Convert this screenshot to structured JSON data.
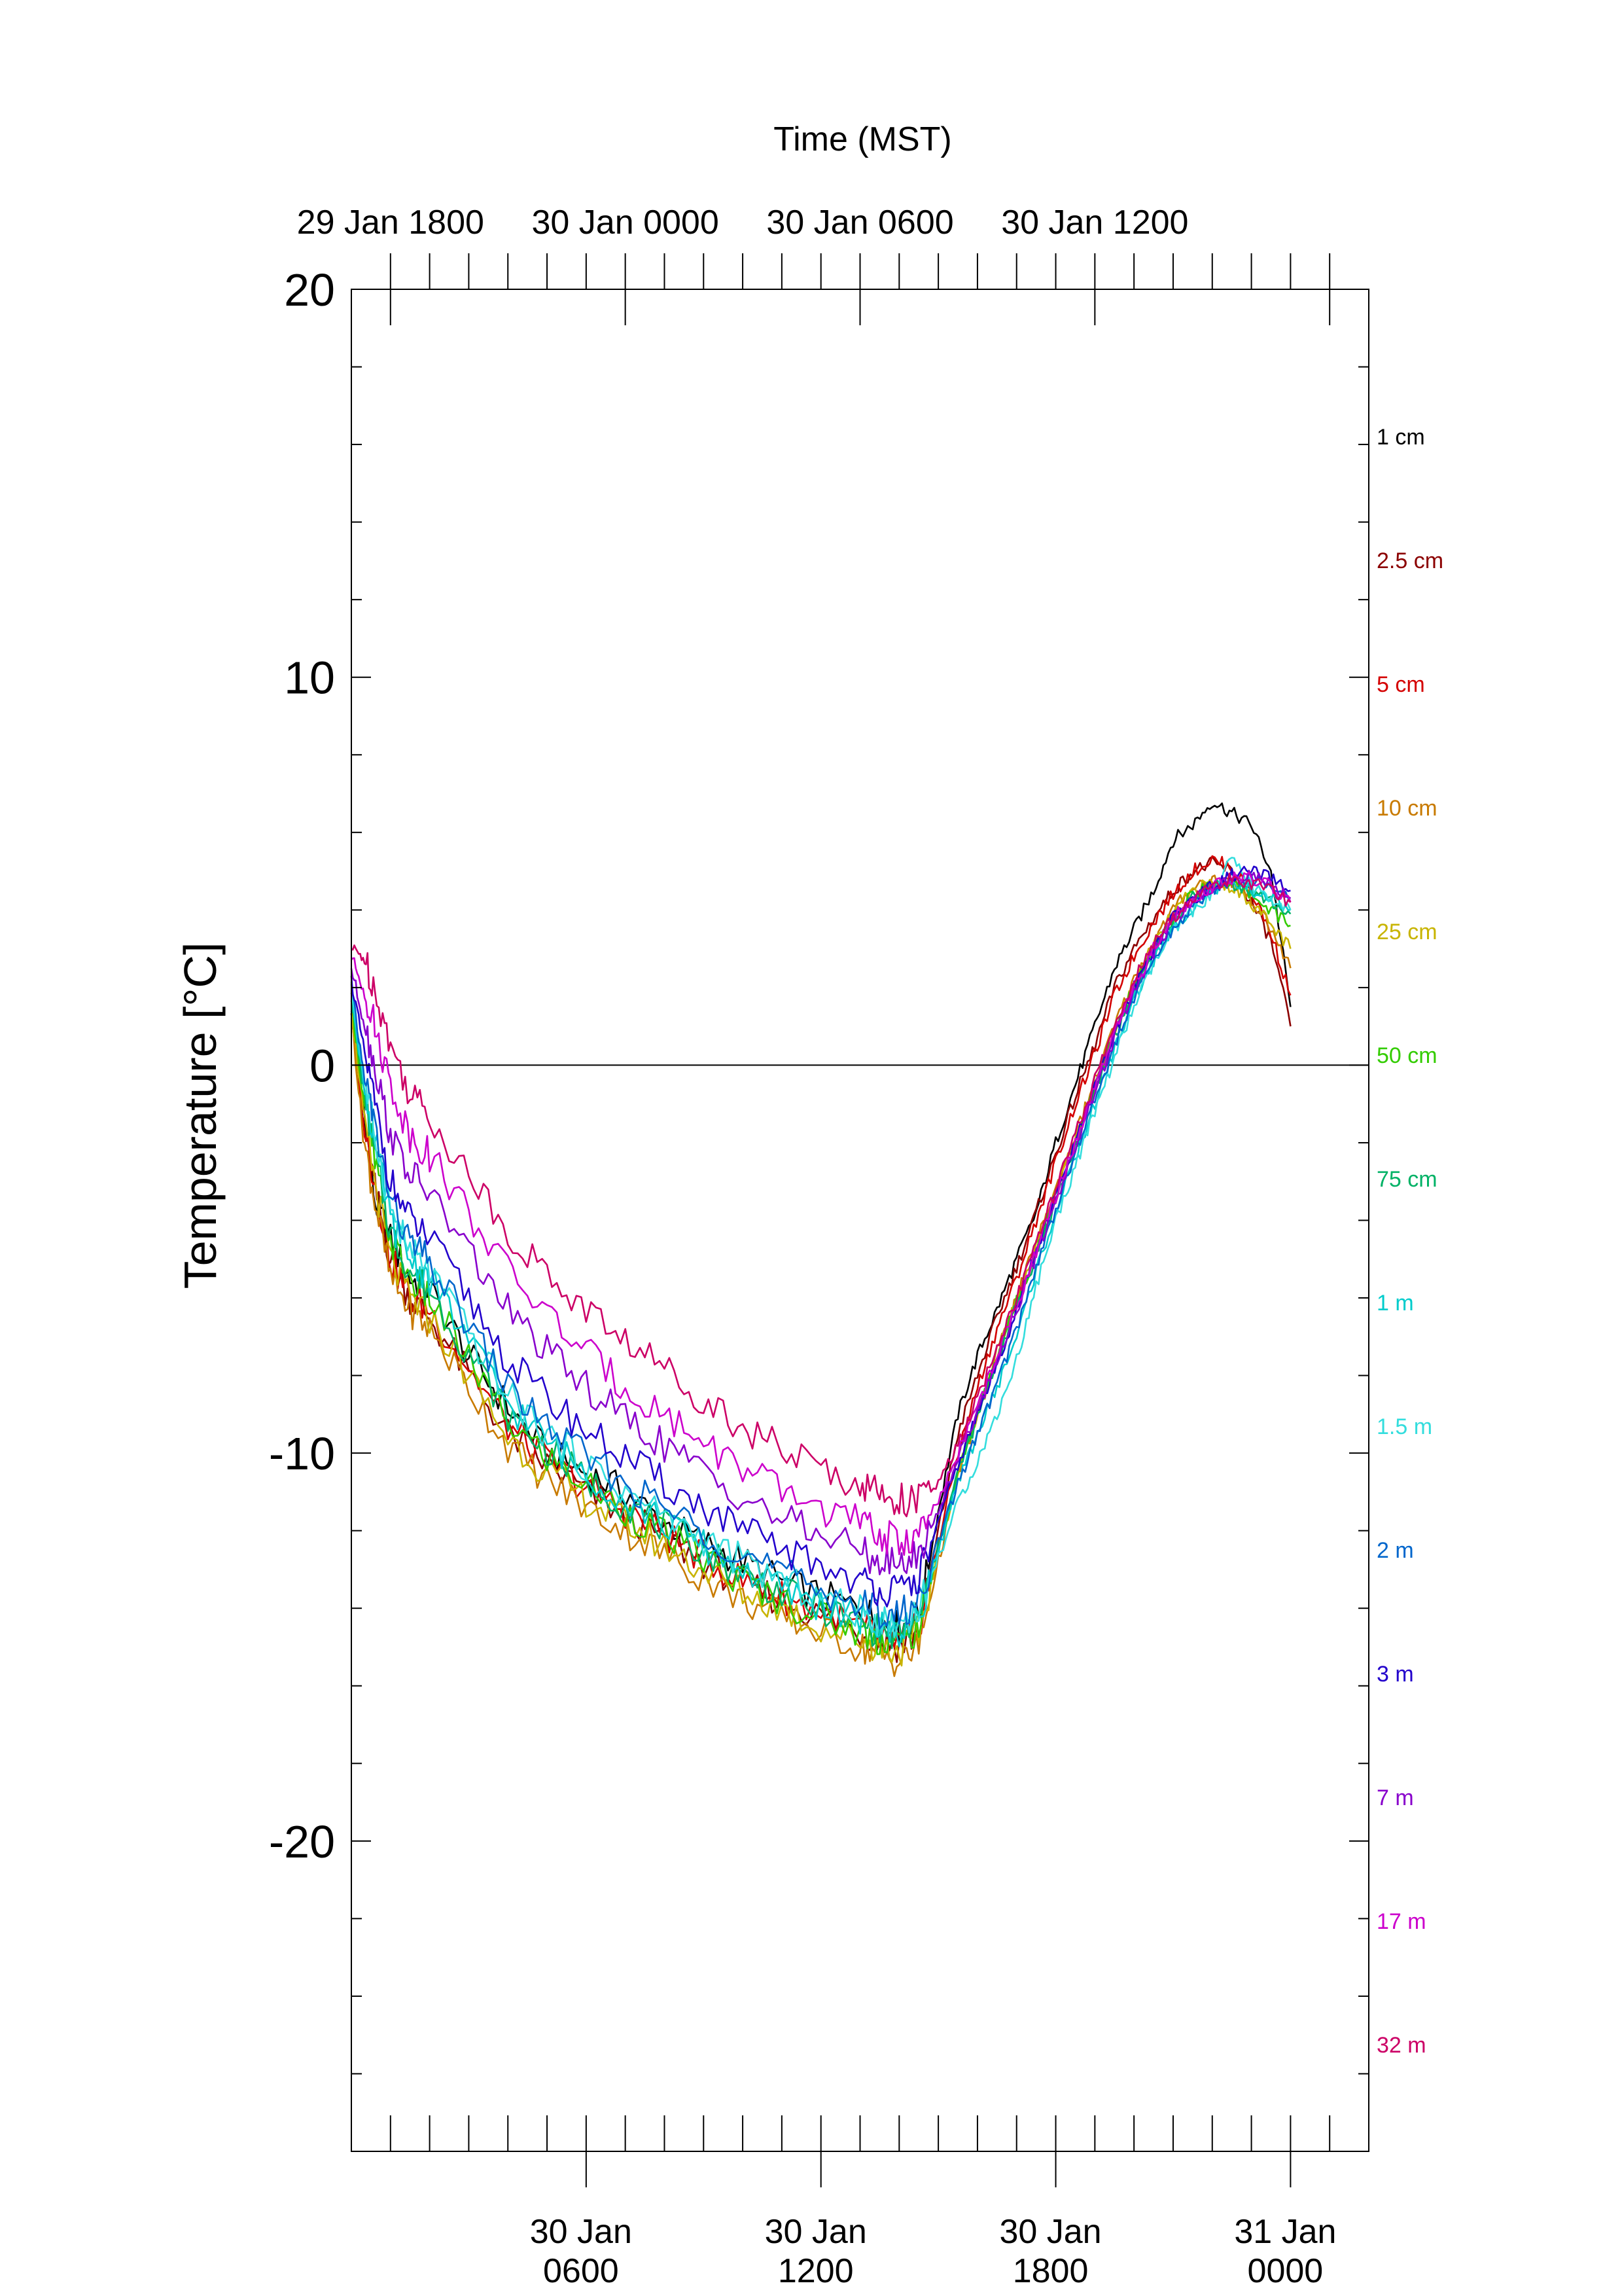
{
  "chart_data": {
    "type": "line",
    "top_axis_title": "Time (MST)",
    "ylabel": "Temperature [°C]",
    "ylim": [
      -28,
      20
    ],
    "xlim": [
      0,
      26
    ],
    "top_x_ticks": [
      {
        "x": 1,
        "label": "29 Jan 1800"
      },
      {
        "x": 7,
        "label": "30 Jan 0000"
      },
      {
        "x": 13,
        "label": "30 Jan 0600"
      },
      {
        "x": 19,
        "label": "30 Jan 1200"
      }
    ],
    "bottom_x_ticks": [
      {
        "x": 6,
        "line1": "30 Jan",
        "line2": "0600"
      },
      {
        "x": 12,
        "line1": "30 Jan",
        "line2": "1200"
      },
      {
        "x": 18,
        "line1": "30 Jan",
        "line2": "1800"
      },
      {
        "x": 24,
        "line1": "31 Jan",
        "line2": "0000"
      }
    ],
    "y_ticks": [
      {
        "y": 20,
        "label": "20"
      },
      {
        "y": 10,
        "label": "10"
      },
      {
        "y": 0,
        "label": "0"
      },
      {
        "y": -10,
        "label": "-10"
      },
      {
        "y": -20,
        "label": "-20"
      }
    ],
    "reference_line_y": 0,
    "x_units": "hours from 29 Jan 1700 MST",
    "series": [
      {
        "name": "1 cm",
        "color": "#000000",
        "x": [
          0,
          0.3,
          0.6,
          1,
          1.5,
          2,
          3,
          4,
          5,
          6,
          7,
          8,
          9,
          10,
          11,
          12,
          13,
          13.5,
          14,
          14.5,
          15,
          15.5,
          16,
          16.5,
          17,
          17.5,
          18,
          18.5,
          19,
          19.5,
          20,
          20.5,
          21,
          21.5,
          22,
          22.5,
          23,
          23.5,
          24
        ],
        "y": [
          1.5,
          -1,
          -3.5,
          -4.5,
          -5.5,
          -5.8,
          -7.5,
          -8.8,
          -10,
          -10.5,
          -11,
          -11.8,
          -12.3,
          -12.8,
          -13.3,
          -13.7,
          -14,
          -14.3,
          -14.5,
          -14.2,
          -11.5,
          -9,
          -7.5,
          -6.3,
          -5,
          -3.8,
          -2,
          -0.5,
          1,
          2.5,
          3.5,
          4.5,
          5.8,
          6.2,
          6.8,
          6.5,
          6.2,
          5,
          1.5
        ]
      },
      {
        "name": "2.5 cm",
        "color": "#8b0000",
        "x": [
          0,
          0.3,
          0.6,
          1,
          1.5,
          2,
          3,
          4,
          5,
          6,
          7,
          8,
          9,
          10,
          11,
          12,
          13,
          13.5,
          14,
          14.5,
          15,
          15.5,
          16,
          16.5,
          17,
          17.5,
          18,
          18.5,
          19,
          19.5,
          20,
          20.5,
          21,
          21.5,
          22,
          22.5,
          23,
          23.5,
          24
        ],
        "y": [
          1.5,
          -1.5,
          -3.2,
          -5,
          -6,
          -6.5,
          -8,
          -9.5,
          -10.3,
          -11,
          -11.6,
          -12.2,
          -12.8,
          -13.4,
          -13.8,
          -14.2,
          -14.6,
          -14.8,
          -15,
          -14.6,
          -12,
          -9.5,
          -8,
          -6.5,
          -5.2,
          -3.8,
          -2.3,
          -0.8,
          0.5,
          2,
          3,
          3.8,
          4.5,
          5,
          5.2,
          5,
          4.2,
          3.2,
          1
        ]
      },
      {
        "name": "5 cm",
        "color": "#d40000",
        "x": [
          0,
          0.3,
          0.6,
          1,
          1.5,
          2,
          3,
          4,
          5,
          6,
          7,
          8,
          9,
          10,
          11,
          12,
          13,
          13.5,
          14,
          14.5,
          15,
          15.5,
          16,
          16.5,
          17,
          17.5,
          18,
          18.5,
          19,
          19.5,
          20,
          20.5,
          21,
          21.5,
          22,
          22.5,
          23,
          23.5,
          24
        ],
        "y": [
          1.4,
          -1.5,
          -3,
          -5,
          -6,
          -6.3,
          -7.8,
          -9.3,
          -10.2,
          -10.9,
          -11.5,
          -12.1,
          -12.7,
          -13.3,
          -13.7,
          -14.1,
          -14.5,
          -14.7,
          -14.9,
          -14.5,
          -12.3,
          -10,
          -8.3,
          -6.8,
          -5.5,
          -4,
          -2.5,
          -1,
          0.3,
          1.8,
          2.8,
          3.7,
          4.4,
          5,
          5.3,
          5.1,
          4.5,
          3.4,
          1.8
        ]
      },
      {
        "name": "10 cm",
        "color": "#c87a00",
        "x": [
          0,
          0.3,
          0.6,
          1,
          1.5,
          2,
          3,
          4,
          5,
          6,
          7,
          8,
          9,
          10,
          11,
          12,
          13,
          13.5,
          14,
          14.5,
          15,
          15.5,
          16,
          16.5,
          17,
          17.5,
          18,
          18.5,
          19,
          19.5,
          20,
          20.5,
          21,
          21.5,
          22,
          22.5,
          23,
          23.5,
          24
        ],
        "y": [
          1.3,
          -1.8,
          -3.5,
          -5.5,
          -6.3,
          -6.8,
          -8.3,
          -9.8,
          -10.7,
          -11.4,
          -12,
          -12.6,
          -13.2,
          -13.8,
          -14.2,
          -14.6,
          -15,
          -15.2,
          -15.4,
          -15,
          -12.8,
          -10.6,
          -9,
          -7.4,
          -6,
          -4.6,
          -3.2,
          -1.8,
          -0.4,
          1,
          2.2,
          3.2,
          4,
          4.6,
          4.8,
          4.7,
          4.3,
          3.5,
          2.5
        ]
      },
      {
        "name": "25 cm",
        "color": "#c8b400",
        "x": [
          0,
          0.3,
          0.6,
          1,
          1.5,
          2,
          3,
          4,
          5,
          6,
          7,
          8,
          9,
          10,
          11,
          12,
          13,
          13.5,
          14,
          14.5,
          15,
          15.5,
          16,
          16.5,
          17,
          17.5,
          18,
          18.5,
          19,
          19.5,
          20,
          20.5,
          21,
          21.5,
          22,
          22.5,
          23,
          23.5,
          24
        ],
        "y": [
          1.5,
          -1.2,
          -3,
          -5,
          -6,
          -6.5,
          -8,
          -9.6,
          -10.5,
          -11.2,
          -11.8,
          -12.4,
          -13,
          -13.6,
          -14,
          -14.5,
          -14.8,
          -15,
          -15.1,
          -14.7,
          -12.6,
          -10.5,
          -9,
          -7.5,
          -6,
          -4.7,
          -3.3,
          -1.9,
          -0.5,
          0.9,
          2.1,
          3.1,
          3.9,
          4.5,
          4.7,
          4.6,
          4.2,
          3.6,
          3
        ]
      },
      {
        "name": "50 cm",
        "color": "#33cc00",
        "x": [
          0,
          0.3,
          0.6,
          1,
          1.5,
          2,
          3,
          4,
          5,
          6,
          7,
          8,
          9,
          10,
          11,
          12,
          13,
          13.5,
          14,
          14.5,
          15,
          15.5,
          16,
          16.5,
          17,
          17.5,
          18,
          18.5,
          19,
          19.5,
          20,
          20.5,
          21,
          21.5,
          22,
          22.5,
          23,
          23.5,
          24
        ],
        "y": [
          1.7,
          -0.8,
          -2.5,
          -4.5,
          -5.5,
          -6,
          -7.6,
          -9.2,
          -10.1,
          -10.8,
          -11.5,
          -12.1,
          -12.7,
          -13.3,
          -13.8,
          -14.2,
          -14.6,
          -14.8,
          -14.9,
          -14.5,
          -12.5,
          -10.5,
          -9,
          -7.5,
          -6.1,
          -4.8,
          -3.4,
          -2,
          -0.6,
          0.8,
          2,
          3,
          3.8,
          4.4,
          4.7,
          4.7,
          4.4,
          4,
          3.6
        ]
      },
      {
        "name": "75 cm",
        "color": "#00b266",
        "x": [
          0,
          0.3,
          0.6,
          1,
          1.5,
          2,
          3,
          4,
          5,
          6,
          7,
          8,
          9,
          10,
          11,
          12,
          13,
          13.5,
          14,
          14.5,
          15,
          15.5,
          16,
          16.5,
          17,
          17.5,
          18,
          18.5,
          19,
          19.5,
          20,
          20.5,
          21,
          21.5,
          22,
          22.5,
          23,
          23.5,
          24
        ],
        "y": [
          1.8,
          -0.6,
          -2.3,
          -4.3,
          -5.3,
          -5.8,
          -7.4,
          -9,
          -9.9,
          -10.7,
          -11.3,
          -11.9,
          -12.5,
          -13.1,
          -13.6,
          -14,
          -14.4,
          -14.6,
          -14.7,
          -14.3,
          -12.4,
          -10.5,
          -9.1,
          -7.6,
          -6.2,
          -4.9,
          -3.5,
          -2.1,
          -0.7,
          0.7,
          1.9,
          2.9,
          3.7,
          4.3,
          4.6,
          4.7,
          4.5,
          4.2,
          3.9
        ]
      },
      {
        "name": "1 m",
        "color": "#00cccc",
        "x": [
          0,
          0.3,
          0.6,
          1,
          1.5,
          2,
          3,
          4,
          5,
          6,
          7,
          8,
          9,
          10,
          11,
          12,
          13,
          13.5,
          14,
          14.5,
          15,
          15.5,
          16,
          16.5,
          17,
          17.5,
          18,
          18.5,
          19,
          19.5,
          20,
          20.5,
          21,
          21.5,
          22,
          22.5,
          23,
          23.5,
          24
        ],
        "y": [
          1.9,
          -0.4,
          -2,
          -4,
          -5,
          -5.5,
          -7.1,
          -8.7,
          -9.7,
          -10.5,
          -11.2,
          -11.8,
          -12.4,
          -13,
          -13.5,
          -13.9,
          -14.3,
          -14.5,
          -14.6,
          -14.2,
          -12.5,
          -10.8,
          -9.5,
          -8.3,
          -7,
          -5.3,
          -3.8,
          -2.4,
          -1,
          0.4,
          1.7,
          2.7,
          3.5,
          4.1,
          4.5,
          4.6,
          4.5,
          4.3,
          4
        ]
      },
      {
        "name": "1.5 m",
        "color": "#33dddd",
        "x": [
          0,
          0.3,
          0.6,
          1,
          1.5,
          2,
          3,
          4,
          5,
          6,
          7,
          8,
          9,
          10,
          11,
          12,
          13,
          13.5,
          14,
          14.5,
          15,
          15.5,
          16,
          16.5,
          17,
          17.5,
          18,
          18.5,
          19,
          19.5,
          20,
          20.5,
          21,
          21.5,
          22,
          22.5,
          23,
          23.5,
          24
        ],
        "y": [
          2,
          -0.2,
          -1.8,
          -3.7,
          -4.8,
          -5.3,
          -6.9,
          -8.5,
          -9.5,
          -10.3,
          -11,
          -11.6,
          -12.2,
          -12.8,
          -13.3,
          -13.7,
          -14.1,
          -14.3,
          -14.4,
          -14,
          -12.7,
          -11.3,
          -10.2,
          -9,
          -7.6,
          -5.7,
          -4,
          -2.6,
          -1.2,
          0.2,
          1.5,
          2.6,
          3.4,
          4,
          4.4,
          5.3,
          4.6,
          4.3,
          4
        ]
      },
      {
        "name": "2 m",
        "color": "#0066cc",
        "x": [
          0,
          0.3,
          0.6,
          1,
          1.5,
          2,
          3,
          4,
          5,
          6,
          7,
          8,
          9,
          10,
          11,
          12,
          13,
          13.5,
          14,
          14.5,
          15,
          15.5,
          16,
          16.5,
          17,
          17.5,
          18,
          18.5,
          19,
          19.5,
          20,
          20.5,
          21,
          21.5,
          22,
          22.5,
          23,
          23.5,
          24
        ],
        "y": [
          2,
          -0.1,
          -1.6,
          -3.5,
          -4.6,
          -5.1,
          -6.7,
          -8.3,
          -9.3,
          -10.1,
          -10.8,
          -11.4,
          -12,
          -12.6,
          -13.1,
          -13.5,
          -13.9,
          -14.1,
          -14.2,
          -13.8,
          -12.3,
          -10.8,
          -9.5,
          -8.2,
          -6.8,
          -5.2,
          -3.7,
          -2.3,
          -0.9,
          0.5,
          1.7,
          2.7,
          3.5,
          4.1,
          4.5,
          4.8,
          4.8,
          4.6,
          4.3
        ]
      },
      {
        "name": "3 m",
        "color": "#2200cc",
        "x": [
          0,
          0.3,
          0.6,
          1,
          1.5,
          2,
          3,
          4,
          5,
          6,
          7,
          8,
          9,
          10,
          11,
          12,
          13,
          13.5,
          14,
          14.5,
          15,
          15.5,
          16,
          16.5,
          17,
          17.5,
          18,
          18.5,
          19,
          19.5,
          20,
          20.5,
          21,
          21.5,
          22,
          22.5,
          23,
          23.5,
          24
        ],
        "y": [
          2.2,
          0.5,
          -1,
          -3,
          -4,
          -4.5,
          -6,
          -7.6,
          -8.6,
          -9.4,
          -10.1,
          -10.8,
          -11.4,
          -12,
          -12.5,
          -12.9,
          -13.3,
          -13.5,
          -13.6,
          -13.2,
          -11.8,
          -10.3,
          -9,
          -7.7,
          -6.3,
          -4.8,
          -3.4,
          -2,
          -0.6,
          0.8,
          2,
          3,
          3.8,
          4.3,
          4.6,
          4.9,
          5,
          4.8,
          4.5
        ]
      },
      {
        "name": "7 m",
        "color": "#8800cc",
        "x": [
          0,
          0.3,
          0.6,
          1,
          1.5,
          2,
          3,
          4,
          5,
          6,
          7,
          8,
          9,
          10,
          11,
          12,
          13,
          13.5,
          14,
          14.5,
          15,
          15.5,
          16,
          16.5,
          17,
          17.5,
          18,
          18.5,
          19,
          19.5,
          20,
          20.5,
          21,
          21.5,
          22,
          22.5,
          23,
          23.5,
          24
        ],
        "y": [
          2.5,
          1.2,
          0,
          -1.8,
          -2.8,
          -3.3,
          -4.8,
          -6.3,
          -7.4,
          -8.3,
          -9.1,
          -9.8,
          -10.5,
          -11.1,
          -11.7,
          -12.1,
          -12.5,
          -12.8,
          -12.9,
          -12.6,
          -11.5,
          -10.1,
          -8.9,
          -7.6,
          -6.3,
          -4.9,
          -3.5,
          -2.1,
          -0.7,
          0.7,
          1.9,
          2.9,
          3.7,
          4.2,
          4.6,
          4.8,
          4.9,
          4.7,
          4.3
        ]
      },
      {
        "name": "17 m",
        "color": "#cc00cc",
        "x": [
          0,
          0.3,
          0.6,
          1,
          1.5,
          2,
          3,
          4,
          5,
          6,
          7,
          8,
          9,
          10,
          11,
          12,
          13,
          13.5,
          14,
          14.5,
          15,
          15.5,
          16,
          16.5,
          17,
          17.5,
          18,
          18.5,
          19,
          19.5,
          20,
          20.5,
          21,
          21.5,
          22,
          22.5,
          23,
          23.5,
          24
        ],
        "y": [
          2.8,
          2,
          1,
          -0.5,
          -1.8,
          -2.3,
          -3.8,
          -5.3,
          -6.4,
          -7.4,
          -8.3,
          -9,
          -9.7,
          -10.4,
          -11,
          -11.4,
          -11.8,
          -12.1,
          -12.3,
          -12.1,
          -11.3,
          -10,
          -8.8,
          -7.5,
          -6.2,
          -4.8,
          -3.4,
          -2,
          -0.6,
          0.8,
          2,
          3,
          3.8,
          4.3,
          4.6,
          4.8,
          4.8,
          4.6,
          4.2
        ]
      },
      {
        "name": "32 m",
        "color": "#cc0066",
        "x": [
          0,
          0.3,
          0.6,
          1,
          1.5,
          2,
          3,
          4,
          5,
          6,
          7,
          8,
          9,
          10,
          11,
          12,
          13,
          13.5,
          14,
          14.5,
          15,
          15.5,
          16,
          16.5,
          17,
          17.5,
          18,
          18.5,
          19,
          19.5,
          20,
          20.5,
          21,
          21.5,
          22,
          22.5,
          23,
          23.5,
          24
        ],
        "y": [
          3,
          2.8,
          2,
          0.5,
          -0.7,
          -1.3,
          -2.8,
          -4.3,
          -5.4,
          -6.3,
          -7.1,
          -7.8,
          -8.6,
          -9.3,
          -9.9,
          -10.4,
          -10.8,
          -11,
          -11.2,
          -11.2,
          -10.8,
          -9.8,
          -8.6,
          -7.3,
          -6,
          -4.6,
          -3.2,
          -1.8,
          -0.4,
          1,
          2.2,
          3.1,
          3.8,
          4.3,
          4.6,
          4.8,
          4.7,
          4.5,
          4.2
        ]
      }
    ]
  }
}
